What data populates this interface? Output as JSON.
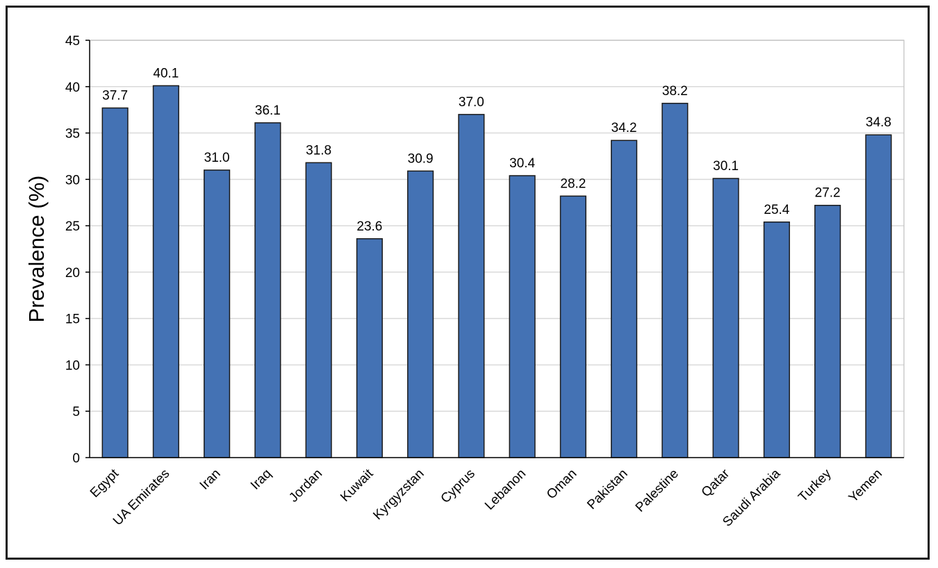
{
  "chart_data": {
    "type": "bar",
    "title": "",
    "xlabel": "",
    "ylabel": "Prevalence (%)",
    "ylim": [
      0,
      45
    ],
    "yticks": [
      0,
      5,
      10,
      15,
      20,
      25,
      30,
      35,
      40,
      45
    ],
    "grid": true,
    "legend": "none",
    "categories": [
      "Egypt",
      "UA Emirates",
      "Iran",
      "Iraq",
      "Jordan",
      "Kuwait",
      "Kyrgyzstan",
      "Cyprus",
      "Lebanon",
      "Oman",
      "Pakistan",
      "Palestine",
      "Qatar",
      "Saudi Arabia",
      "Turkey",
      "Yemen"
    ],
    "values": [
      37.7,
      40.1,
      31.0,
      36.1,
      31.8,
      23.6,
      30.9,
      37.0,
      30.4,
      28.2,
      34.2,
      38.2,
      30.1,
      25.4,
      27.2,
      34.8
    ],
    "data_labels": [
      "37.7",
      "40.1",
      "31.0",
      "36.1",
      "31.8",
      "23.6",
      "30.9",
      "37.0",
      "30.4",
      "28.2",
      "34.2",
      "38.2",
      "30.1",
      "25.4",
      "27.2",
      "34.8"
    ],
    "colors": {
      "bar": "#4472B4",
      "bar_edge": "#1a1a1a",
      "grid": "#d9d9d9",
      "axis": "#000000"
    }
  }
}
